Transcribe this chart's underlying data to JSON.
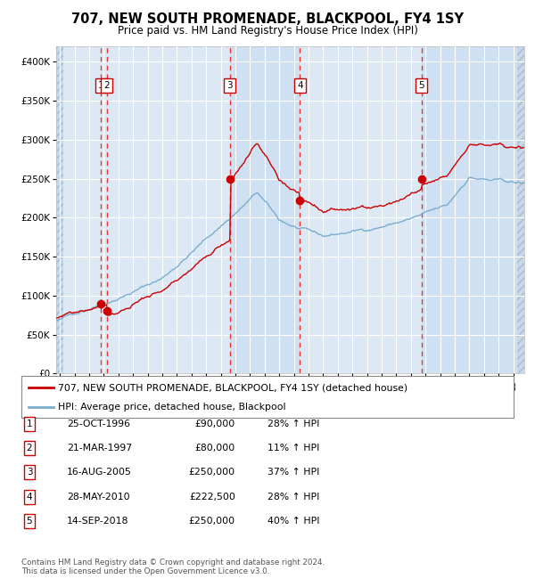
{
  "title": "707, NEW SOUTH PROMENADE, BLACKPOOL, FY4 1SY",
  "subtitle": "Price paid vs. HM Land Registry's House Price Index (HPI)",
  "footer1": "Contains HM Land Registry data © Crown copyright and database right 2024.",
  "footer2": "This data is licensed under the Open Government Licence v3.0.",
  "legend_line1": "707, NEW SOUTH PROMENADE, BLACKPOOL, FY4 1SY (detached house)",
  "legend_line2": "HPI: Average price, detached house, Blackpool",
  "transactions": [
    {
      "num": "1",
      "date": "25-OCT-1996",
      "price": "£90,000",
      "pct": "28% ↑ HPI",
      "year": 1996.81,
      "value": 90000
    },
    {
      "num": "2",
      "date": "21-MAR-1997",
      "price": "£80,000",
      "pct": "11% ↑ HPI",
      "year": 1997.22,
      "value": 80000
    },
    {
      "num": "3",
      "date": "16-AUG-2005",
      "price": "£250,000",
      "pct": "37% ↑ HPI",
      "year": 2005.62,
      "value": 250000
    },
    {
      "num": "4",
      "date": "28-MAY-2010",
      "price": "£222,500",
      "pct": "28% ↑ HPI",
      "year": 2010.41,
      "value": 222500
    },
    {
      "num": "5",
      "date": "14-SEP-2018",
      "price": "£250,000",
      "pct": "40% ↑ HPI",
      "year": 2018.71,
      "value": 250000
    }
  ],
  "ylim": [
    0,
    420000
  ],
  "xlim_start": 1993.75,
  "xlim_end": 2025.75,
  "ytick_vals": [
    0,
    50000,
    100000,
    150000,
    200000,
    250000,
    300000,
    350000,
    400000
  ],
  "ytick_labels": [
    "£0",
    "£50K",
    "£100K",
    "£150K",
    "£200K",
    "£250K",
    "£300K",
    "£350K",
    "£400K"
  ],
  "bg_color": "#dce9f5",
  "grid_color": "#ffffff",
  "red_color": "#cc0000",
  "blue_color": "#7aadcc",
  "dashed_color": "#ee3333",
  "shade_color": "#c5daf0",
  "hatch_bg": "#c8d8e8"
}
